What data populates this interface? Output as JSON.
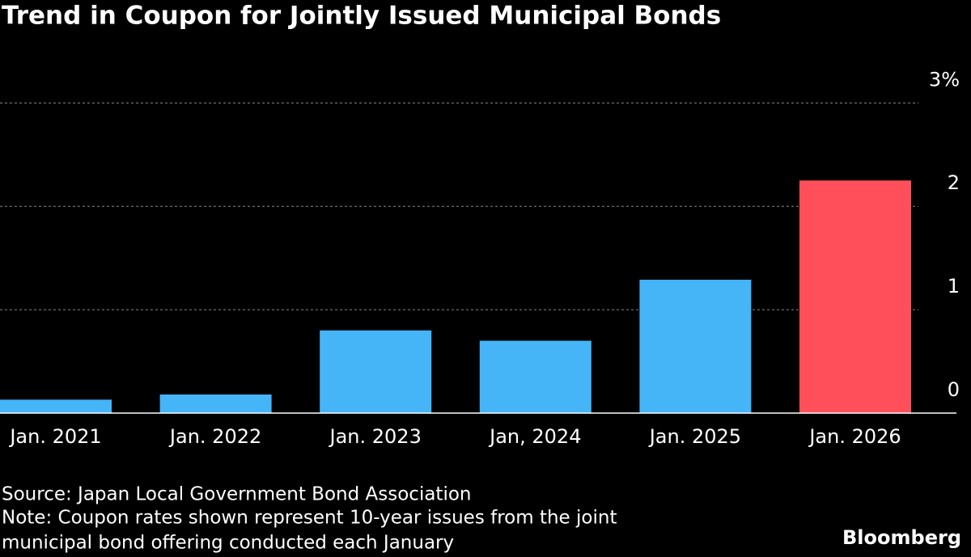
{
  "chart_data": {
    "type": "bar",
    "title": "Trend in Coupon for Jointly Issued Municipal Bonds",
    "categories": [
      "Jan. 2021",
      "Jan. 2022",
      "Jan. 2023",
      "Jan, 2024",
      "Jan. 2025",
      "Jan. 2026"
    ],
    "values": [
      0.13,
      0.18,
      0.8,
      0.7,
      1.29,
      2.25
    ],
    "colors": [
      "#45b5f8",
      "#45b5f8",
      "#45b5f8",
      "#45b5f8",
      "#45b5f8",
      "#ff4f5b"
    ],
    "ylim": [
      0,
      3.3
    ],
    "yticks": [
      0,
      1,
      2,
      {
        "value": 3,
        "label": "3%"
      }
    ],
    "grid": true,
    "source": "Source: Japan Local Government Bond Association",
    "note": [
      "Note: Coupon rates shown represent 10-year issues from the joint",
      "municipal bond offering conducted each January"
    ],
    "brand": "Bloomberg"
  }
}
